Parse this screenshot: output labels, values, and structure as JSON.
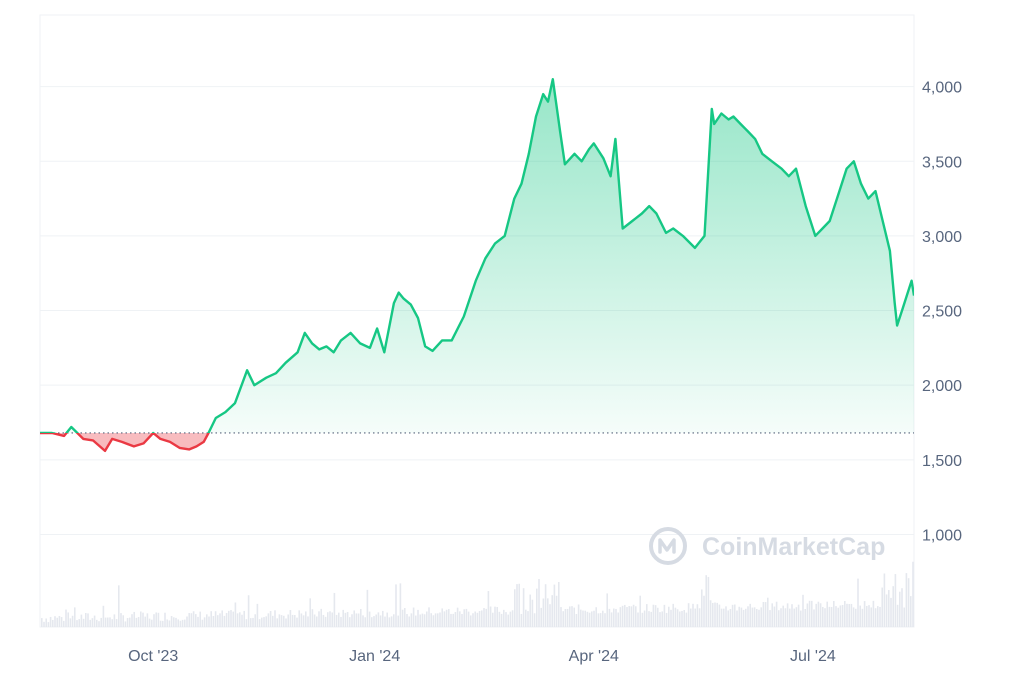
{
  "watermark": {
    "text": "CoinMarketCap",
    "icon": "coinmarketcap-logo-icon"
  },
  "colors": {
    "up": "#16c784",
    "down": "#ea3943",
    "grid": "#eff2f5",
    "baseline": "#58667e",
    "volume": "#e5e8ee",
    "axis_text": "#58667e",
    "watermark": "#d6dbe3"
  },
  "chart_data": {
    "type": "area",
    "x_tick_labels": [
      "Oct '23",
      "Jan '24",
      "Apr '24",
      "Jul '24"
    ],
    "x_ticks": [
      "2023-10-01",
      "2024-01-01",
      "2024-04-01",
      "2024-07-01"
    ],
    "y_tick_labels": [
      "1,000",
      "1,500",
      "2,000",
      "2,500",
      "3,000",
      "3,500",
      "4,000"
    ],
    "y_ticks": [
      1000,
      1500,
      2000,
      2500,
      3000,
      3500,
      4000
    ],
    "ylim": [
      380,
      4480
    ],
    "xlim": [
      "2023-08-15",
      "2024-08-12"
    ],
    "baseline": 1680,
    "grid": true,
    "series": [
      {
        "x": [
          "2023-08-15",
          "2023-08-20",
          "2023-08-25",
          "2023-08-28",
          "2023-09-02",
          "2023-09-06",
          "2023-09-11",
          "2023-09-14",
          "2023-09-18",
          "2023-09-23",
          "2023-09-27",
          "2023-10-01",
          "2023-10-04",
          "2023-10-08",
          "2023-10-12",
          "2023-10-16",
          "2023-10-19",
          "2023-10-22",
          "2023-10-24",
          "2023-10-27",
          "2023-10-31",
          "2023-11-04",
          "2023-11-09",
          "2023-11-12",
          "2023-11-17",
          "2023-11-21",
          "2023-11-25",
          "2023-11-30",
          "2023-12-03",
          "2023-12-06",
          "2023-12-09",
          "2023-12-12",
          "2023-12-15",
          "2023-12-18",
          "2023-12-22",
          "2023-12-26",
          "2023-12-30",
          "2024-01-02",
          "2024-01-05",
          "2024-01-09",
          "2024-01-11",
          "2024-01-13",
          "2024-01-16",
          "2024-01-19",
          "2024-01-22",
          "2024-01-25",
          "2024-01-29",
          "2024-02-02",
          "2024-02-07",
          "2024-02-12",
          "2024-02-16",
          "2024-02-20",
          "2024-02-24",
          "2024-02-28",
          "2024-03-02",
          "2024-03-05",
          "2024-03-08",
          "2024-03-11",
          "2024-03-13",
          "2024-03-15",
          "2024-03-18",
          "2024-03-20",
          "2024-03-24",
          "2024-03-27",
          "2024-03-30",
          "2024-04-01",
          "2024-04-05",
          "2024-04-08",
          "2024-04-10",
          "2024-04-13",
          "2024-04-17",
          "2024-04-21",
          "2024-04-24",
          "2024-04-27",
          "2024-05-01",
          "2024-05-04",
          "2024-05-08",
          "2024-05-13",
          "2024-05-17",
          "2024-05-20",
          "2024-05-21",
          "2024-05-24",
          "2024-05-27",
          "2024-05-29",
          "2024-06-01",
          "2024-06-04",
          "2024-06-07",
          "2024-06-10",
          "2024-06-14",
          "2024-06-18",
          "2024-06-21",
          "2024-06-24",
          "2024-06-28",
          "2024-07-02",
          "2024-07-05",
          "2024-07-08",
          "2024-07-12",
          "2024-07-15",
          "2024-07-18",
          "2024-07-21",
          "2024-07-24",
          "2024-07-27",
          "2024-07-30",
          "2024-08-02",
          "2024-08-04",
          "2024-08-05",
          "2024-08-07",
          "2024-08-09",
          "2024-08-11",
          "2024-08-12"
        ],
        "values": [
          1680,
          1680,
          1660,
          1720,
          1640,
          1630,
          1560,
          1640,
          1620,
          1590,
          1610,
          1680,
          1640,
          1620,
          1580,
          1570,
          1590,
          1620,
          1680,
          1780,
          1820,
          1880,
          2100,
          2000,
          2050,
          2080,
          2150,
          2220,
          2350,
          2280,
          2240,
          2260,
          2220,
          2300,
          2350,
          2280,
          2250,
          2380,
          2220,
          2550,
          2620,
          2580,
          2540,
          2450,
          2260,
          2230,
          2300,
          2300,
          2460,
          2700,
          2850,
          2950,
          3000,
          3250,
          3350,
          3550,
          3800,
          3950,
          3900,
          4050,
          3700,
          3480,
          3550,
          3500,
          3580,
          3620,
          3520,
          3400,
          3650,
          3050,
          3100,
          3150,
          3200,
          3150,
          3020,
          3050,
          3000,
          2920,
          3000,
          3850,
          3750,
          3820,
          3780,
          3800,
          3750,
          3700,
          3650,
          3550,
          3500,
          3450,
          3400,
          3450,
          3200,
          3000,
          3050,
          3100,
          3300,
          3450,
          3500,
          3350,
          3250,
          3300,
          3100,
          2900,
          2550,
          2400,
          2500,
          2600,
          2700,
          2600
        ]
      }
    ]
  }
}
